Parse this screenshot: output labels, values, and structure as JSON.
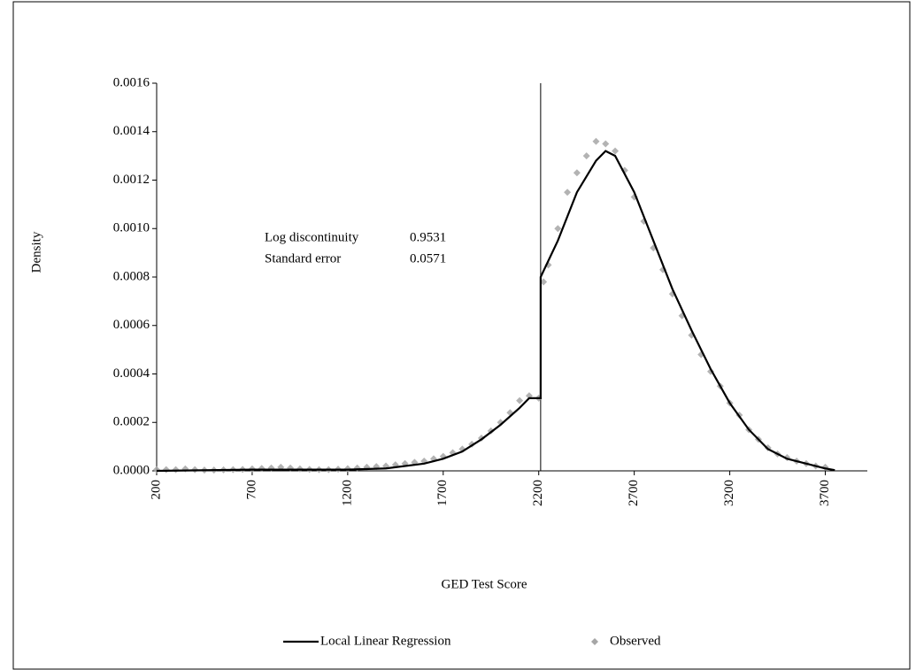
{
  "chart_data": {
    "type": "combo",
    "x_label": "GED Test Score",
    "y_label": "Density",
    "xlim": [
      200,
      3920
    ],
    "ylim": [
      0,
      0.0016
    ],
    "xticks": [
      200,
      700,
      1200,
      1700,
      2200,
      2700,
      3200,
      3700
    ],
    "yticks": [
      {
        "value": 0,
        "label": "0.0000"
      },
      {
        "value": 0.0002,
        "label": "0.0002"
      },
      {
        "value": 0.0004,
        "label": "0.0004"
      },
      {
        "value": 0.0006,
        "label": "0.0006"
      },
      {
        "value": 0.0008,
        "label": "0.0008"
      },
      {
        "value": 0.001,
        "label": "0.0010"
      },
      {
        "value": 0.0012,
        "label": "0.0012"
      },
      {
        "value": 0.0014,
        "label": "0.0014"
      },
      {
        "value": 0.0016,
        "label": "0.0016"
      }
    ],
    "cutoff": 2210,
    "annotations": [
      {
        "label": "Log discontinuity",
        "value": 0.9531
      },
      {
        "label": "Standard error",
        "value": 0.0571
      }
    ],
    "series": [
      {
        "name": "Local Linear Regression",
        "type": "line",
        "color": "#000000",
        "x": [
          200,
          700,
          1200,
          1400,
          1600,
          1700,
          1800,
          1900,
          2000,
          2100,
          2150,
          2210,
          2210,
          2300,
          2400,
          2500,
          2550,
          2600,
          2700,
          2800,
          2900,
          3000,
          3100,
          3200,
          3300,
          3400,
          3500,
          3600,
          3700,
          3750
        ],
        "values": [
          0,
          5e-06,
          5e-06,
          1e-05,
          3e-05,
          5e-05,
          8e-05,
          0.00013,
          0.00019,
          0.00026,
          0.0003,
          0.0003,
          0.0008,
          0.00095,
          0.00115,
          0.00128,
          0.00132,
          0.0013,
          0.00115,
          0.00095,
          0.00075,
          0.00058,
          0.00042,
          0.00028,
          0.00017,
          9e-05,
          5e-05,
          3e-05,
          1e-05,
          3e-06
        ]
      },
      {
        "name": "Observed",
        "type": "scatter",
        "color": "#a6a6a6",
        "x": [
          200,
          250,
          300,
          350,
          400,
          450,
          500,
          550,
          600,
          650,
          700,
          750,
          800,
          850,
          900,
          950,
          1000,
          1050,
          1100,
          1150,
          1200,
          1250,
          1300,
          1350,
          1400,
          1450,
          1500,
          1550,
          1600,
          1650,
          1700,
          1750,
          1800,
          1850,
          1900,
          1950,
          2000,
          2050,
          2100,
          2150,
          2200,
          2225,
          2250,
          2300,
          2350,
          2400,
          2450,
          2500,
          2550,
          2600,
          2650,
          2700,
          2750,
          2800,
          2850,
          2900,
          2950,
          3000,
          3050,
          3100,
          3150,
          3200,
          3250,
          3300,
          3350,
          3400,
          3450,
          3500,
          3550,
          3600,
          3650,
          3700
        ],
        "values": [
          5e-06,
          5e-06,
          5e-06,
          8e-06,
          5e-06,
          3e-06,
          3e-06,
          4e-06,
          5e-06,
          6e-06,
          8e-06,
          1e-05,
          1.2e-05,
          1.5e-05,
          1.2e-05,
          8e-06,
          6e-06,
          5e-06,
          5e-06,
          7e-06,
          9e-06,
          1.2e-05,
          1.5e-05,
          1.8e-05,
          2e-05,
          2.5e-05,
          3e-05,
          3.5e-05,
          4e-05,
          5e-05,
          6e-05,
          7.5e-05,
          9e-05,
          0.00011,
          0.000135,
          0.000165,
          0.0002,
          0.00024,
          0.00029,
          0.00031,
          0.0003,
          0.00078,
          0.00085,
          0.001,
          0.00115,
          0.00123,
          0.0013,
          0.00136,
          0.00135,
          0.00132,
          0.00124,
          0.00113,
          0.00103,
          0.00092,
          0.00083,
          0.00073,
          0.00064,
          0.00056,
          0.00048,
          0.00041,
          0.00035,
          0.00028,
          0.00023,
          0.00017,
          0.00013,
          9.5e-05,
          7e-05,
          5.5e-05,
          4e-05,
          3e-05,
          2e-05,
          1.5e-05
        ]
      }
    ]
  }
}
